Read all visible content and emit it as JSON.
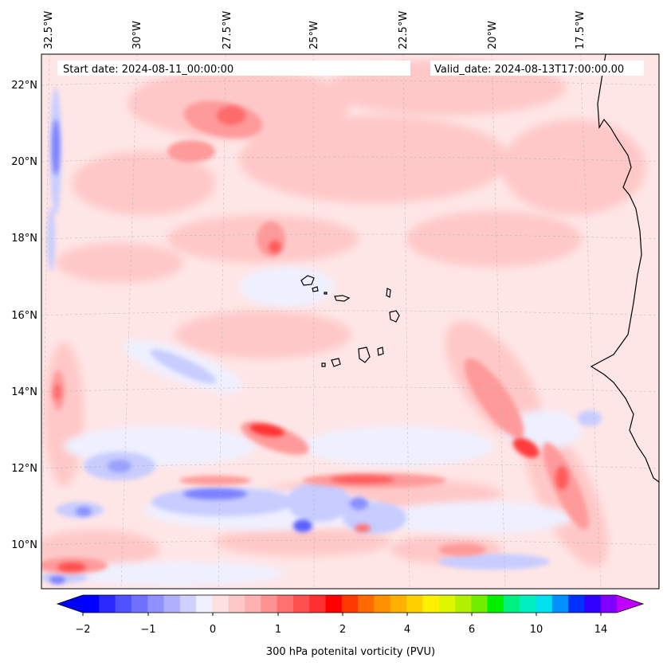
{
  "map": {
    "start_date": "Start date: 2024-08-11_00:00:00",
    "valid_date": "Valid_date: 2024-08-13T17:00:00.00",
    "lon_labels": [
      "32.5°W",
      "30°W",
      "27.5°W",
      "25°W",
      "22.5°W",
      "20°W",
      "17.5°W"
    ],
    "lat_labels": [
      "22°N",
      "20°N",
      "18°N",
      "16°N",
      "14°N",
      "12°N",
      "10°N"
    ],
    "colorbar": {
      "title": "300 hPa potenital vorticity (PVU)",
      "tick_labels": [
        "−2",
        "−1",
        "0",
        "1",
        "2",
        "4",
        "6",
        "10",
        "14"
      ],
      "colors": [
        "#0000ff",
        "#2a2aff",
        "#5050ff",
        "#7070ff",
        "#9090ff",
        "#b0b0ff",
        "#d0d0ff",
        "#f0f0ff",
        "#ffe0e0",
        "#ffc8c8",
        "#ffb0b0",
        "#ff9090",
        "#ff7070",
        "#ff5050",
        "#ff3030",
        "#ff0000",
        "#ff3a00",
        "#ff6a00",
        "#ff9000",
        "#ffb000",
        "#ffd000",
        "#fff000",
        "#e0f500",
        "#b0f000",
        "#70f000",
        "#00f000",
        "#00f080",
        "#00f0c0",
        "#00e0f0",
        "#0090ff",
        "#0030ff",
        "#3000ff",
        "#8000ff"
      ],
      "extend_low_color": "#0000ff",
      "extend_high_color": "#c000ff"
    },
    "field_colors": {
      "background": "#ffe6e6",
      "light_red": "#ffc8c8",
      "mid_red": "#ff9a9a",
      "strong_red": "#ff5a5a",
      "light_blue": "#eef0ff",
      "mid_blue": "#c8ccff",
      "strong_blue": "#7a80ff",
      "deep_blue": "#3a40ff"
    }
  }
}
